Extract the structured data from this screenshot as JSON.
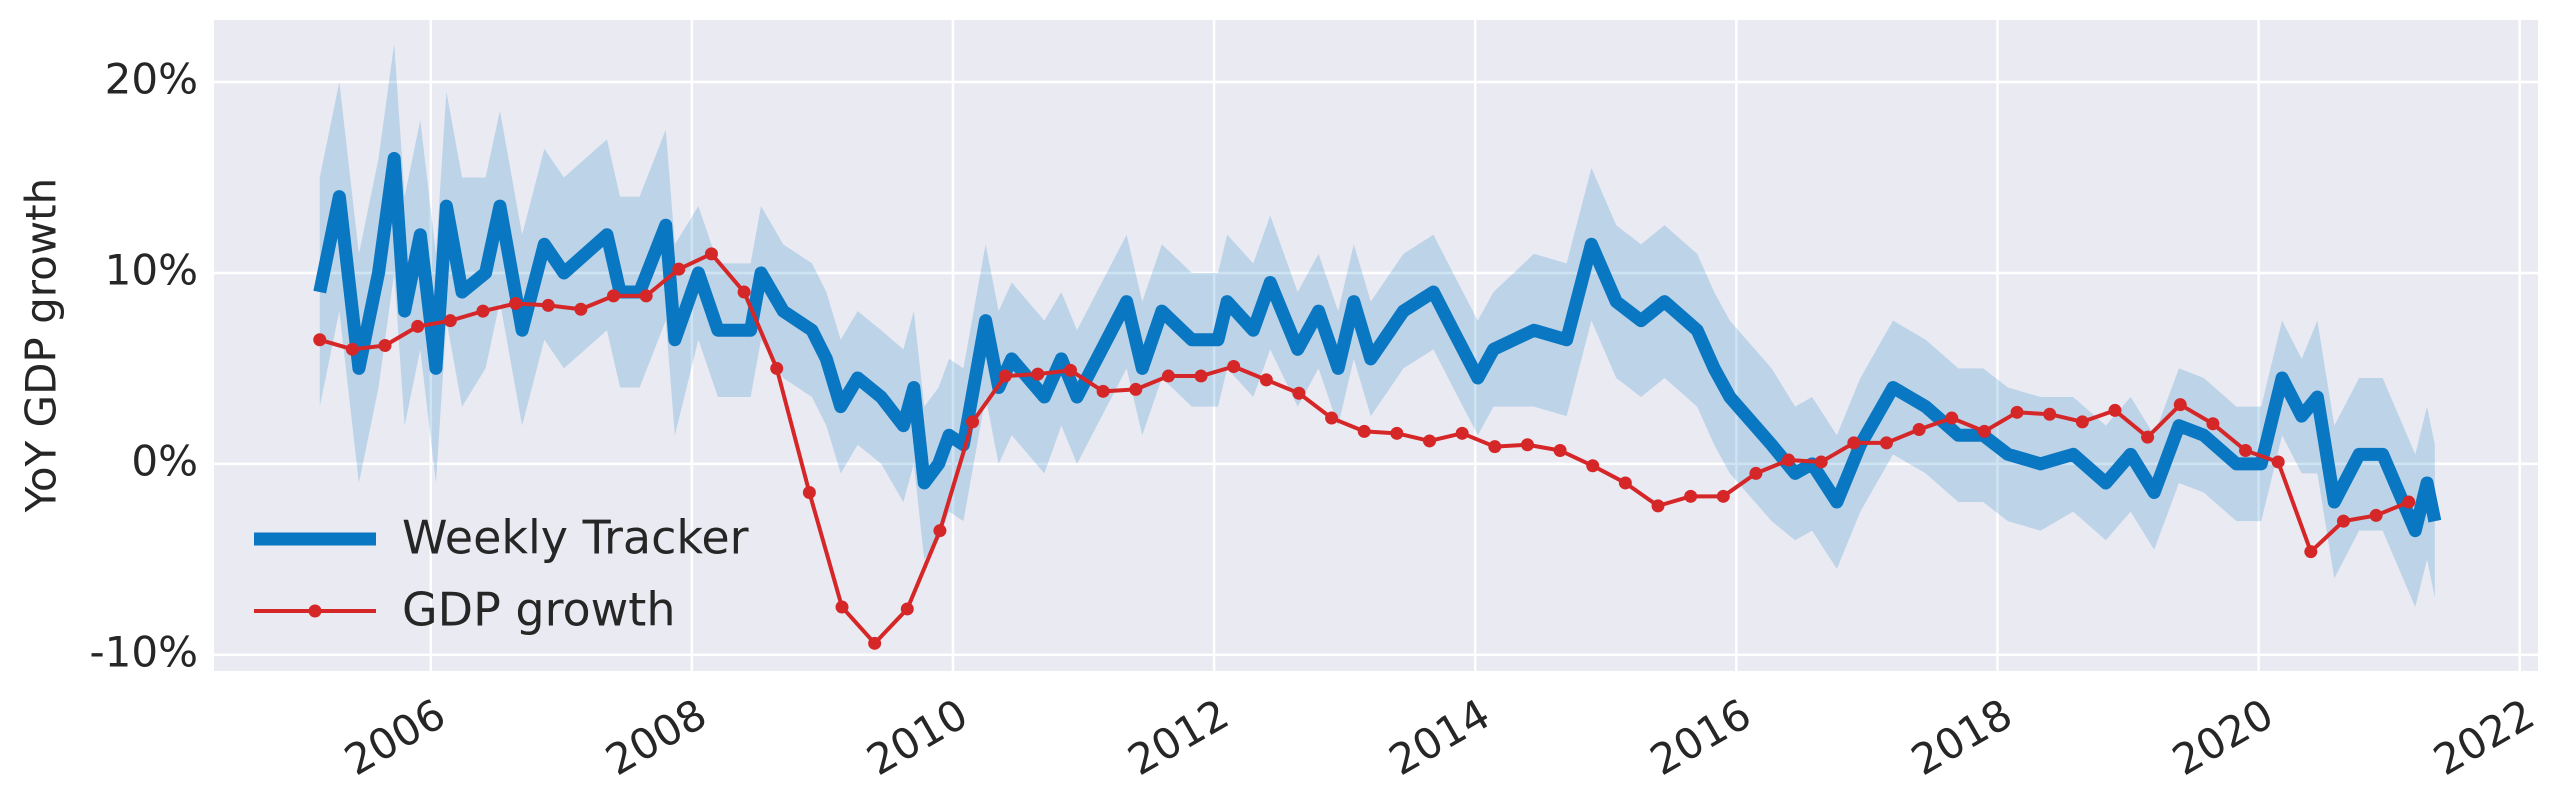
{
  "chart_data": {
    "type": "line",
    "ylabel": "YoY GDP growth",
    "xlim": [
      2004.34,
      2022.14
    ],
    "xticks": [
      2006,
      2008,
      2010,
      2012,
      2014,
      2016,
      2018,
      2020,
      2022
    ],
    "ylim": [
      -10.85,
      23.25
    ],
    "yticks": [
      {
        "value": -10,
        "label": "-10%"
      },
      {
        "value": 0,
        "label": "0%"
      },
      {
        "value": 10,
        "label": "10%"
      },
      {
        "value": 20,
        "label": "20%"
      }
    ],
    "grid": true,
    "background": "#eaeaf2",
    "legend": "lower left",
    "series": [
      {
        "name": "Weekly Tracker",
        "color": "#0a77c2",
        "marker": false,
        "x": [
          2005.15,
          2005.3,
          2005.45,
          2005.6,
          2005.72,
          2005.8,
          2005.92,
          2006.04,
          2006.12,
          2006.24,
          2006.42,
          2006.53,
          2006.7,
          2006.87,
          2007.02,
          2007.35,
          2007.45,
          2007.6,
          2007.8,
          2007.87,
          2008.05,
          2008.2,
          2008.45,
          2008.53,
          2008.7,
          2008.92,
          2009.03,
          2009.14,
          2009.27,
          2009.45,
          2009.62,
          2009.7,
          2009.78,
          2009.89,
          2009.97,
          2010.08,
          2010.25,
          2010.35,
          2010.45,
          2010.7,
          2010.83,
          2010.95,
          2011.33,
          2011.45,
          2011.6,
          2011.83,
          2012.03,
          2012.1,
          2012.3,
          2012.43,
          2012.64,
          2012.8,
          2012.95,
          2013.07,
          2013.2,
          2013.45,
          2013.68,
          2013.83,
          2014.02,
          2014.14,
          2014.45,
          2014.7,
          2014.89,
          2015.08,
          2015.27,
          2015.45,
          2015.7,
          2015.83,
          2015.95,
          2016.27,
          2016.45,
          2016.58,
          2016.77,
          2016.95,
          2017.2,
          2017.45,
          2017.7,
          2017.89,
          2018.08,
          2018.33,
          2018.58,
          2018.83,
          2019.02,
          2019.2,
          2019.39,
          2019.58,
          2019.83,
          2020.02,
          2020.18,
          2020.33,
          2020.45,
          2020.58,
          2020.77,
          2020.95,
          2021.2,
          2021.29,
          2021.35
        ],
        "values": [
          9,
          14,
          5,
          10,
          16,
          8,
          12,
          5,
          13.5,
          9,
          10,
          13.5,
          7,
          11.5,
          10,
          12,
          9,
          9,
          12.5,
          6.5,
          10,
          7,
          7,
          10,
          8,
          7,
          5.5,
          3,
          4.5,
          3.5,
          2,
          4,
          -1,
          0,
          1.5,
          1,
          7.5,
          4,
          5.5,
          3.5,
          5.5,
          3.5,
          8.5,
          5,
          8,
          6.5,
          6.5,
          8.5,
          7,
          9.5,
          6,
          8,
          5,
          8.5,
          5.5,
          8,
          9,
          7,
          4.5,
          6,
          7,
          6.5,
          11.5,
          8.5,
          7.5,
          8.5,
          7,
          5,
          3.5,
          1,
          -0.5,
          0,
          -2,
          1,
          4,
          3,
          1.5,
          1.5,
          0.5,
          0,
          0.5,
          -1,
          0.5,
          -1.5,
          2,
          1.5,
          0,
          0,
          4.5,
          2.5,
          3.5,
          -2,
          0.5,
          0.5,
          -3.5,
          -1,
          -3
        ],
        "errors": [
          6,
          6,
          6,
          6,
          6,
          6,
          6,
          6,
          6,
          6,
          5,
          5,
          5,
          5,
          5,
          5,
          5,
          5,
          5,
          5,
          3.5,
          3.5,
          3.5,
          3.5,
          3.5,
          3.5,
          3.5,
          3.5,
          3.5,
          3.5,
          4,
          4,
          4,
          4,
          4,
          4,
          4,
          4,
          4,
          4,
          3.5,
          3.5,
          3.5,
          3.5,
          3.5,
          3.5,
          3.5,
          3.5,
          3.5,
          3.5,
          3,
          3,
          3,
          3,
          3,
          3,
          3,
          3,
          3,
          3,
          4,
          4,
          4,
          4,
          4,
          4,
          4,
          4,
          4,
          4,
          3.5,
          3.5,
          3.5,
          3.5,
          3.5,
          3.5,
          3.5,
          3.5,
          3.5,
          3.5,
          3,
          3,
          3,
          3,
          3,
          3,
          3,
          3,
          3,
          3,
          4,
          4,
          4,
          4,
          4,
          4,
          4
        ]
      },
      {
        "name": "GDP growth",
        "color": "#d62728",
        "marker": true,
        "x": [
          2005.15,
          2005.4,
          2005.65,
          2005.9,
          2006.15,
          2006.4,
          2006.65,
          2006.9,
          2007.15,
          2007.4,
          2007.65,
          2007.9,
          2008.15,
          2008.4,
          2008.65,
          2008.9,
          2009.15,
          2009.4,
          2009.65,
          2009.9,
          2010.15,
          2010.4,
          2010.65,
          2010.9,
          2011.15,
          2011.4,
          2011.65,
          2011.9,
          2012.15,
          2012.4,
          2012.65,
          2012.9,
          2013.15,
          2013.4,
          2013.65,
          2013.9,
          2014.15,
          2014.4,
          2014.65,
          2014.9,
          2015.15,
          2015.4,
          2015.65,
          2015.9,
          2016.15,
          2016.4,
          2016.65,
          2016.9,
          2017.15,
          2017.4,
          2017.65,
          2017.9,
          2018.15,
          2018.4,
          2018.65,
          2018.9,
          2019.15,
          2019.4,
          2019.65,
          2019.9,
          2020.15,
          2020.4,
          2020.65,
          2020.9,
          2021.15
        ],
        "values": [
          6.5,
          6.0,
          6.2,
          7.2,
          7.5,
          8.0,
          8.4,
          8.3,
          8.1,
          8.8,
          8.8,
          10.2,
          11.0,
          9.0,
          5.0,
          -1.5,
          -7.5,
          -9.4,
          -7.6,
          -3.5,
          2.2,
          4.6,
          4.7,
          4.9,
          3.8,
          3.9,
          4.6,
          4.6,
          5.1,
          4.4,
          3.7,
          2.4,
          1.7,
          1.6,
          1.2,
          1.6,
          0.9,
          1.0,
          0.7,
          -0.1,
          -1.0,
          -2.2,
          -1.7,
          -1.7,
          -0.5,
          0.2,
          0.1,
          1.1,
          1.1,
          1.8,
          2.4,
          1.7,
          2.7,
          2.6,
          2.2,
          2.8,
          1.4,
          3.1,
          2.1,
          0.7,
          0.1,
          -4.6,
          -3.0,
          -2.7,
          -2.0
        ]
      }
    ]
  }
}
